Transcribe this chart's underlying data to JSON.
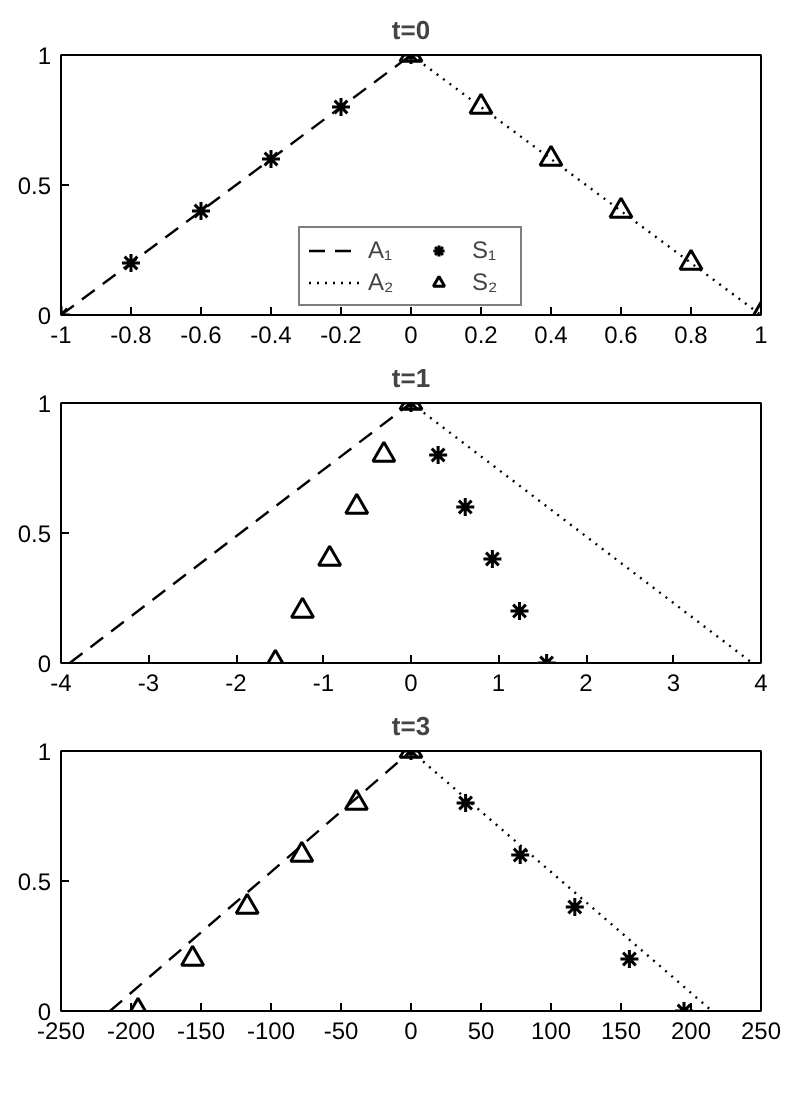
{
  "chart_data": [
    {
      "type": "line",
      "title": "t=0",
      "xlim": [
        -1,
        1
      ],
      "ylim": [
        0,
        1
      ],
      "xticks": [
        -1,
        -0.8,
        -0.6,
        -0.4,
        -0.2,
        0,
        0.2,
        0.4,
        0.6,
        0.8,
        1
      ],
      "yticks": [
        0,
        0.5,
        1
      ],
      "grid": false,
      "legend": "bottom",
      "series": [
        {
          "name": "A₁",
          "color": "#000000",
          "line_style": "dashed",
          "marker": "none",
          "x": [
            -1,
            0
          ],
          "values": [
            0,
            1
          ]
        },
        {
          "name": "A₂",
          "color": "#000000",
          "line_style": "dotted",
          "marker": "none",
          "x": [
            0,
            1
          ],
          "values": [
            1,
            0
          ]
        },
        {
          "name": "S₁",
          "type": "scatter",
          "color": "#000000",
          "marker": "cross",
          "x": [
            -1,
            -0.8,
            -0.6,
            -0.4,
            -0.2,
            0
          ],
          "values": [
            0,
            0.2,
            0.4,
            0.6,
            0.8,
            1
          ]
        },
        {
          "name": "S₂",
          "type": "scatter",
          "color": "#000000",
          "marker": "triangle",
          "x": [
            0,
            0.2,
            0.4,
            0.6,
            0.8,
            1
          ],
          "values": [
            1,
            0.8,
            0.6,
            0.4,
            0.2,
            0
          ]
        }
      ]
    },
    {
      "type": "line",
      "title": "t=1",
      "xlim": [
        -4,
        4
      ],
      "ylim": [
        0,
        1
      ],
      "xticks": [
        -4,
        -3,
        -2,
        -1,
        0,
        1,
        2,
        3,
        4
      ],
      "yticks": [
        0,
        0.5,
        1
      ],
      "grid": false,
      "series": [
        {
          "color": "#000000",
          "line_style": "dashed",
          "marker": "none",
          "x": [
            -3.9,
            0
          ],
          "values": [
            0,
            1
          ]
        },
        {
          "color": "#000000",
          "line_style": "dotted",
          "marker": "none",
          "x": [
            0,
            3.9
          ],
          "values": [
            1,
            0
          ]
        },
        {
          "type": "scatter",
          "color": "#000000",
          "marker": "cross",
          "x": [
            0,
            0.31,
            0.62,
            0.93,
            1.24,
            1.55
          ],
          "values": [
            1,
            0.8,
            0.6,
            0.4,
            0.2,
            0
          ]
        },
        {
          "type": "scatter",
          "color": "#000000",
          "marker": "triangle",
          "x": [
            -1.55,
            -1.24,
            -0.93,
            -0.62,
            -0.31,
            0
          ],
          "values": [
            0,
            0.2,
            0.4,
            0.6,
            0.8,
            1
          ]
        }
      ]
    },
    {
      "type": "line",
      "title": "t=3",
      "xlim": [
        -250,
        250
      ],
      "ylim": [
        0,
        1
      ],
      "xticks": [
        -250,
        -200,
        -150,
        -100,
        -50,
        0,
        50,
        100,
        150,
        200,
        250
      ],
      "yticks": [
        0,
        0.5,
        1
      ],
      "grid": false,
      "series": [
        {
          "color": "#000000",
          "line_style": "dashed",
          "marker": "none",
          "x": [
            -215,
            0
          ],
          "values": [
            0,
            1
          ]
        },
        {
          "color": "#000000",
          "line_style": "dotted",
          "marker": "none",
          "x": [
            0,
            215
          ],
          "values": [
            1,
            0
          ]
        },
        {
          "type": "scatter",
          "color": "#000000",
          "marker": "cross",
          "x": [
            0,
            39,
            78,
            117,
            156,
            195
          ],
          "values": [
            1,
            0.8,
            0.6,
            0.4,
            0.2,
            0
          ]
        },
        {
          "type": "scatter",
          "color": "#000000",
          "marker": "triangle",
          "x": [
            -195,
            -156,
            -117,
            -78,
            -39,
            0
          ],
          "values": [
            0,
            0.2,
            0.4,
            0.6,
            0.8,
            1
          ]
        }
      ]
    }
  ]
}
